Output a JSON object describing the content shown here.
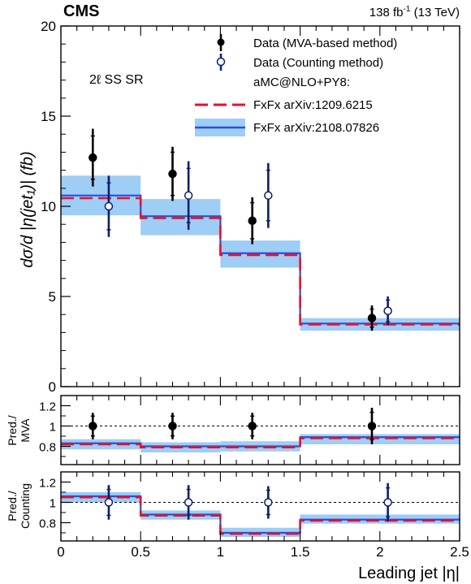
{
  "header": {
    "experiment": "CMS",
    "lumi_prefix": "138 fb",
    "lumi_exp": "-1",
    "lumi_suffix": " (13 TeV)"
  },
  "colors": {
    "band": "#9ecdf5",
    "fxfx_new": "#2b4fd6",
    "fxfx_old": "#e8102a",
    "mva": "#000000",
    "counting": "#0b1f6e"
  },
  "chart_data": [
    {
      "type": "line",
      "panel": "main",
      "region_label": "2ℓ SS SR",
      "ylabel": "dσ/d |η(jet₁)| (fb)",
      "ylim": [
        0,
        20
      ],
      "yticks": [
        0,
        5,
        10,
        15,
        20
      ],
      "bin_edges": [
        0,
        0.5,
        1.0,
        1.5,
        2.5
      ],
      "series": [
        {
          "name": "Data (MVA-based method)",
          "x": [
            0.2,
            0.7,
            1.2,
            1.95
          ],
          "values": [
            12.7,
            11.8,
            9.2,
            3.8
          ],
          "err_total": [
            1.6,
            1.5,
            1.3,
            0.7
          ],
          "err_stat": [
            1.2,
            1.2,
            1.0,
            0.5
          ]
        },
        {
          "name": "Data (Counting method)",
          "x": [
            0.3,
            0.8,
            1.3,
            2.05
          ],
          "values": [
            10.0,
            10.6,
            10.6,
            4.2
          ],
          "err_total": [
            1.7,
            1.9,
            1.8,
            0.8
          ],
          "err_stat": [
            1.3,
            1.5,
            1.4,
            0.6
          ]
        },
        {
          "name": "FxFx arXiv:1209.6215",
          "values": [
            10.45,
            9.35,
            7.3,
            3.45
          ]
        },
        {
          "name": "FxFx arXiv:2108.07826",
          "values": [
            10.6,
            9.45,
            7.4,
            3.5
          ],
          "band_low": [
            9.5,
            8.4,
            6.6,
            3.1
          ],
          "band_high": [
            11.7,
            10.4,
            8.1,
            3.8
          ]
        }
      ],
      "legend": {
        "generator": "aMC@NLO+PY8:",
        "entries": [
          "Data (MVA-based method)",
          "Data (Counting method)",
          "FxFx arXiv:1209.6215",
          "FxFx arXiv:2108.07826"
        ]
      }
    },
    {
      "type": "line",
      "panel": "ratio-mva",
      "ylabel": "Pred./ MVA",
      "ylabel_lines": [
        "Pred./",
        "MVA"
      ],
      "ylim": [
        0.62,
        1.3
      ],
      "yticks": [
        "0.8",
        "1",
        "1.2"
      ],
      "ytick_values": [
        0.8,
        1.0,
        1.2
      ],
      "series": [
        {
          "name": "Data (MVA-based method)",
          "x": [
            0.2,
            0.7,
            1.2,
            1.95
          ],
          "values": [
            1.0,
            1.0,
            1.0,
            1.0
          ],
          "err": [
            0.13,
            0.13,
            0.13,
            0.18
          ]
        },
        {
          "name": "FxFx arXiv:1209.6215",
          "values": [
            0.82,
            0.79,
            0.79,
            0.88
          ]
        },
        {
          "name": "FxFx arXiv:2108.07826",
          "values": [
            0.83,
            0.8,
            0.8,
            0.89
          ],
          "band_low": [
            0.77,
            0.74,
            0.75,
            0.82
          ],
          "band_high": [
            0.87,
            0.84,
            0.85,
            0.92
          ]
        }
      ]
    },
    {
      "type": "line",
      "panel": "ratio-counting",
      "ylabel": "Pred./ Counting",
      "ylabel_lines": [
        "Pred./",
        "Counting"
      ],
      "xlabel": "Leading jet |η|",
      "xlim": [
        0,
        2.5
      ],
      "xticks": [
        "0",
        "0.5",
        "1",
        "1.5",
        "2",
        "2.5"
      ],
      "xtick_values": [
        0,
        0.5,
        1.0,
        1.5,
        2.0,
        2.5
      ],
      "ylim": [
        0.62,
        1.3
      ],
      "yticks": [
        "0.8",
        "1",
        "1.2"
      ],
      "ytick_values": [
        0.8,
        1.0,
        1.2
      ],
      "series": [
        {
          "name": "Data (Counting method)",
          "x": [
            0.3,
            0.8,
            1.3,
            2.05
          ],
          "values": [
            1.0,
            1.0,
            1.0,
            1.0
          ],
          "err": [
            0.17,
            0.17,
            0.16,
            0.19
          ]
        },
        {
          "name": "FxFx arXiv:1209.6215",
          "values": [
            1.05,
            0.87,
            0.69,
            0.82
          ]
        },
        {
          "name": "FxFx arXiv:2108.07826",
          "values": [
            1.06,
            0.88,
            0.7,
            0.83
          ],
          "band_low": [
            1.0,
            0.83,
            0.66,
            0.79
          ],
          "band_high": [
            1.1,
            0.92,
            0.75,
            0.88
          ]
        }
      ]
    }
  ]
}
